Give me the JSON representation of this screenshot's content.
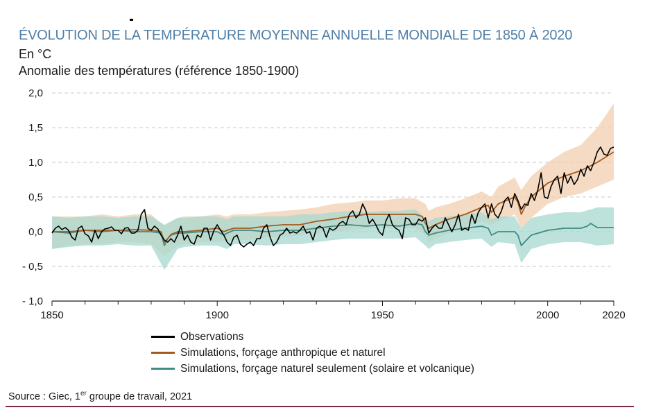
{
  "title": "ÉVOLUTION DE LA TEMPÉRATURE MOYENNE ANNUELLE MONDIALE DE 1850 À 2020",
  "unit": "En °C",
  "ylabel": "Anomalie des températures (référence 1850-1900)",
  "source": {
    "prefix": "Source : Giec, 1",
    "sup": "er",
    "suffix": " groupe de travail, 2021"
  },
  "colors": {
    "observations": "#000000",
    "anthro": "#a45a1c",
    "anthro_band": "#f1cfb0",
    "natural": "#3f8b83",
    "natural_band": "#a7d8d0",
    "grid": "#c8c8c8",
    "title": "#4f7fa8",
    "rule": "#7a2a4a"
  },
  "chart_data": {
    "type": "line",
    "title": "ÉVOLUTION DE LA TEMPÉRATURE MOYENNE ANNUELLE MONDIALE DE 1850 À 2020",
    "xlabel": "",
    "ylabel": "Anomalie des températures (référence 1850-1900)",
    "xlim": [
      1850,
      2020
    ],
    "ylim": [
      -1.0,
      2.0
    ],
    "grid": true,
    "legend": "bottom",
    "y_ticks": [
      {
        "value": 2.0,
        "label": "2,0"
      },
      {
        "value": 1.5,
        "label": "1,5"
      },
      {
        "value": 1.0,
        "label": "1,0"
      },
      {
        "value": 0.5,
        "label": "0,5"
      },
      {
        "value": 0.0,
        "label": "0,0"
      },
      {
        "value": -0.5,
        "label": "- 0,5"
      },
      {
        "value": -1.0,
        "label": "- 1,0"
      }
    ],
    "x_ticks": [
      {
        "value": 1850,
        "label": "1850"
      },
      {
        "value": 1900,
        "label": "1900"
      },
      {
        "value": 1950,
        "label": "1950"
      },
      {
        "value": 2000,
        "label": "2000"
      },
      {
        "value": 2020,
        "label": "2020"
      }
    ],
    "series": [
      {
        "name": "Observations",
        "key": "observations",
        "x": [
          1850,
          1851,
          1852,
          1853,
          1854,
          1855,
          1856,
          1857,
          1858,
          1859,
          1860,
          1861,
          1862,
          1863,
          1864,
          1865,
          1866,
          1867,
          1868,
          1869,
          1870,
          1871,
          1872,
          1873,
          1874,
          1875,
          1876,
          1877,
          1878,
          1879,
          1880,
          1881,
          1882,
          1883,
          1884,
          1885,
          1886,
          1887,
          1888,
          1889,
          1890,
          1891,
          1892,
          1893,
          1894,
          1895,
          1896,
          1897,
          1898,
          1899,
          1900,
          1901,
          1902,
          1903,
          1904,
          1905,
          1906,
          1907,
          1908,
          1909,
          1910,
          1911,
          1912,
          1913,
          1914,
          1915,
          1916,
          1917,
          1918,
          1919,
          1920,
          1921,
          1922,
          1923,
          1924,
          1925,
          1926,
          1927,
          1928,
          1929,
          1930,
          1931,
          1932,
          1933,
          1934,
          1935,
          1936,
          1937,
          1938,
          1939,
          1940,
          1941,
          1942,
          1943,
          1944,
          1945,
          1946,
          1947,
          1948,
          1949,
          1950,
          1951,
          1952,
          1953,
          1954,
          1955,
          1956,
          1957,
          1958,
          1959,
          1960,
          1961,
          1962,
          1963,
          1964,
          1965,
          1966,
          1967,
          1968,
          1969,
          1970,
          1971,
          1972,
          1973,
          1974,
          1975,
          1976,
          1977,
          1978,
          1979,
          1980,
          1981,
          1982,
          1983,
          1984,
          1985,
          1986,
          1987,
          1988,
          1989,
          1990,
          1991,
          1992,
          1993,
          1994,
          1995,
          1996,
          1997,
          1998,
          1999,
          2000,
          2001,
          2002,
          2003,
          2004,
          2005,
          2006,
          2007,
          2008,
          2009,
          2010,
          2011,
          2012,
          2013,
          2014,
          2015,
          2016,
          2017,
          2018,
          2019,
          2020
        ],
        "y": [
          -0.02,
          0.05,
          0.08,
          0.03,
          0.06,
          0.02,
          -0.08,
          -0.12,
          0.05,
          0.08,
          -0.03,
          -0.06,
          -0.15,
          0.02,
          -0.1,
          0.0,
          0.04,
          0.05,
          0.07,
          0.02,
          0.02,
          -0.03,
          0.05,
          0.06,
          -0.02,
          -0.02,
          0.02,
          0.25,
          0.32,
          0.05,
          0.02,
          0.08,
          0.04,
          -0.05,
          -0.12,
          -0.15,
          -0.1,
          -0.15,
          -0.05,
          0.08,
          -0.12,
          -0.05,
          -0.15,
          -0.18,
          -0.05,
          -0.08,
          0.05,
          0.05,
          -0.12,
          0.02,
          0.1,
          0.02,
          -0.05,
          -0.15,
          -0.2,
          -0.08,
          -0.05,
          -0.18,
          -0.22,
          -0.18,
          -0.15,
          -0.2,
          -0.1,
          -0.1,
          0.05,
          0.1,
          -0.08,
          -0.2,
          -0.15,
          -0.05,
          -0.02,
          0.05,
          -0.02,
          0.0,
          -0.02,
          0.02,
          0.08,
          -0.02,
          0.0,
          -0.12,
          0.05,
          0.08,
          0.05,
          -0.08,
          0.05,
          0.02,
          0.05,
          0.12,
          0.15,
          0.1,
          0.25,
          0.3,
          0.2,
          0.25,
          0.4,
          0.3,
          0.12,
          0.18,
          0.1,
          0.0,
          -0.05,
          0.15,
          0.25,
          0.1,
          0.05,
          0.02,
          -0.1,
          0.2,
          0.18,
          0.1,
          0.1,
          0.18,
          0.15,
          0.2,
          -0.02,
          0.05,
          0.1,
          0.05,
          0.05,
          0.2,
          0.1,
          0.0,
          0.1,
          0.25,
          0.02,
          0.05,
          0.02,
          0.25,
          0.12,
          0.28,
          0.35,
          0.4,
          0.2,
          0.4,
          0.25,
          0.2,
          0.3,
          0.45,
          0.5,
          0.35,
          0.55,
          0.45,
          0.32,
          0.4,
          0.38,
          0.55,
          0.45,
          0.6,
          0.85,
          0.5,
          0.48,
          0.65,
          0.75,
          0.8,
          0.55,
          0.85,
          0.7,
          0.8,
          0.68,
          0.75,
          0.9,
          0.8,
          0.95,
          0.88,
          1.0,
          1.15,
          1.22,
          1.12,
          1.1,
          1.2,
          1.22
        ]
      },
      {
        "name": "Simulations, forçage anthropique et naturel",
        "key": "anthro",
        "x": [
          1850,
          1855,
          1860,
          1865,
          1870,
          1875,
          1880,
          1883,
          1884,
          1885,
          1886,
          1888,
          1890,
          1895,
          1900,
          1902,
          1903,
          1905,
          1910,
          1915,
          1920,
          1925,
          1930,
          1935,
          1940,
          1945,
          1950,
          1955,
          1960,
          1962,
          1963,
          1964,
          1966,
          1970,
          1975,
          1980,
          1982,
          1983,
          1985,
          1990,
          1991,
          1992,
          1993,
          1995,
          2000,
          2005,
          2010,
          2015,
          2020
        ],
        "y": [
          0.0,
          0.0,
          0.02,
          0.02,
          0.02,
          0.03,
          0.02,
          0.0,
          -0.15,
          -0.1,
          -0.04,
          0.0,
          0.0,
          0.02,
          0.05,
          0.0,
          0.02,
          0.05,
          0.05,
          0.08,
          0.1,
          0.1,
          0.15,
          0.18,
          0.22,
          0.25,
          0.25,
          0.25,
          0.25,
          0.22,
          0.12,
          0.05,
          0.1,
          0.18,
          0.25,
          0.35,
          0.38,
          0.28,
          0.4,
          0.5,
          0.42,
          0.25,
          0.35,
          0.5,
          0.7,
          0.8,
          0.88,
          1.0,
          1.15
        ]
      },
      {
        "name": "Simulations, forçage naturel seulement (solaire et volcanique)",
        "key": "natural",
        "x": [
          1850,
          1855,
          1860,
          1865,
          1870,
          1875,
          1880,
          1883,
          1884,
          1885,
          1886,
          1888,
          1890,
          1895,
          1900,
          1902,
          1903,
          1905,
          1910,
          1915,
          1920,
          1925,
          1930,
          1935,
          1940,
          1945,
          1950,
          1955,
          1960,
          1962,
          1963,
          1964,
          1966,
          1970,
          1975,
          1980,
          1982,
          1983,
          1985,
          1990,
          1991,
          1992,
          1993,
          1995,
          2000,
          2005,
          2010,
          2012,
          2013,
          2015,
          2020
        ],
        "y": [
          0.0,
          -0.02,
          0.02,
          0.0,
          0.02,
          0.0,
          0.0,
          -0.02,
          -0.2,
          -0.1,
          -0.05,
          -0.02,
          -0.02,
          0.0,
          0.0,
          -0.05,
          -0.02,
          0.02,
          0.02,
          0.0,
          0.02,
          0.02,
          0.05,
          0.08,
          0.1,
          0.08,
          0.1,
          0.08,
          0.12,
          0.1,
          0.0,
          -0.05,
          -0.02,
          0.02,
          0.05,
          0.08,
          0.05,
          -0.05,
          0.0,
          0.0,
          -0.05,
          -0.2,
          -0.15,
          -0.05,
          0.02,
          0.05,
          0.05,
          0.08,
          0.12,
          0.06,
          0.06
        ]
      }
    ],
    "bands": [
      {
        "key": "anthro_band",
        "x": [
          1850,
          1855,
          1860,
          1865,
          1870,
          1875,
          1880,
          1884,
          1888,
          1890,
          1895,
          1900,
          1903,
          1905,
          1910,
          1915,
          1920,
          1925,
          1930,
          1935,
          1940,
          1945,
          1950,
          1955,
          1960,
          1963,
          1964,
          1966,
          1970,
          1975,
          1980,
          1983,
          1985,
          1990,
          1992,
          1995,
          2000,
          2005,
          2010,
          2015,
          2020
        ],
        "lower": [
          -0.25,
          -0.2,
          -0.18,
          -0.18,
          -0.15,
          -0.15,
          -0.18,
          -0.35,
          -0.2,
          -0.18,
          -0.15,
          -0.15,
          -0.15,
          -0.12,
          -0.12,
          -0.08,
          -0.08,
          -0.05,
          -0.02,
          0.0,
          0.02,
          0.05,
          0.05,
          0.05,
          0.05,
          -0.05,
          -0.15,
          -0.1,
          -0.02,
          0.05,
          0.15,
          0.1,
          0.15,
          0.25,
          0.05,
          0.2,
          0.4,
          0.5,
          0.55,
          0.65,
          0.75
        ],
        "upper": [
          0.22,
          0.22,
          0.22,
          0.25,
          0.22,
          0.25,
          0.25,
          0.08,
          0.2,
          0.22,
          0.22,
          0.25,
          0.22,
          0.25,
          0.25,
          0.28,
          0.3,
          0.32,
          0.35,
          0.4,
          0.42,
          0.45,
          0.45,
          0.48,
          0.48,
          0.4,
          0.3,
          0.35,
          0.4,
          0.48,
          0.58,
          0.5,
          0.65,
          0.78,
          0.6,
          0.8,
          1.0,
          1.15,
          1.25,
          1.5,
          1.85
        ]
      },
      {
        "key": "natural_band",
        "x": [
          1850,
          1855,
          1860,
          1865,
          1870,
          1875,
          1880,
          1884,
          1888,
          1890,
          1895,
          1900,
          1903,
          1905,
          1910,
          1915,
          1920,
          1925,
          1930,
          1935,
          1940,
          1945,
          1950,
          1955,
          1960,
          1963,
          1964,
          1966,
          1970,
          1975,
          1980,
          1983,
          1985,
          1990,
          1992,
          1995,
          2000,
          2005,
          2010,
          2015,
          2020
        ],
        "lower": [
          -0.25,
          -0.22,
          -0.2,
          -0.2,
          -0.18,
          -0.2,
          -0.2,
          -0.55,
          -0.25,
          -0.22,
          -0.2,
          -0.2,
          -0.25,
          -0.18,
          -0.18,
          -0.2,
          -0.18,
          -0.18,
          -0.15,
          -0.12,
          -0.1,
          -0.1,
          -0.1,
          -0.1,
          -0.08,
          -0.2,
          -0.25,
          -0.18,
          -0.15,
          -0.12,
          -0.1,
          -0.22,
          -0.15,
          -0.18,
          -0.45,
          -0.25,
          -0.18,
          -0.15,
          -0.15,
          -0.2,
          -0.18
        ],
        "upper": [
          0.22,
          0.2,
          0.22,
          0.22,
          0.2,
          0.22,
          0.22,
          0.1,
          0.2,
          0.2,
          0.22,
          0.22,
          0.18,
          0.22,
          0.22,
          0.22,
          0.22,
          0.25,
          0.25,
          0.28,
          0.3,
          0.28,
          0.3,
          0.3,
          0.32,
          0.2,
          0.15,
          0.2,
          0.22,
          0.25,
          0.28,
          0.18,
          0.22,
          0.22,
          0.05,
          0.2,
          0.25,
          0.28,
          0.28,
          0.35,
          0.35
        ]
      }
    ]
  }
}
